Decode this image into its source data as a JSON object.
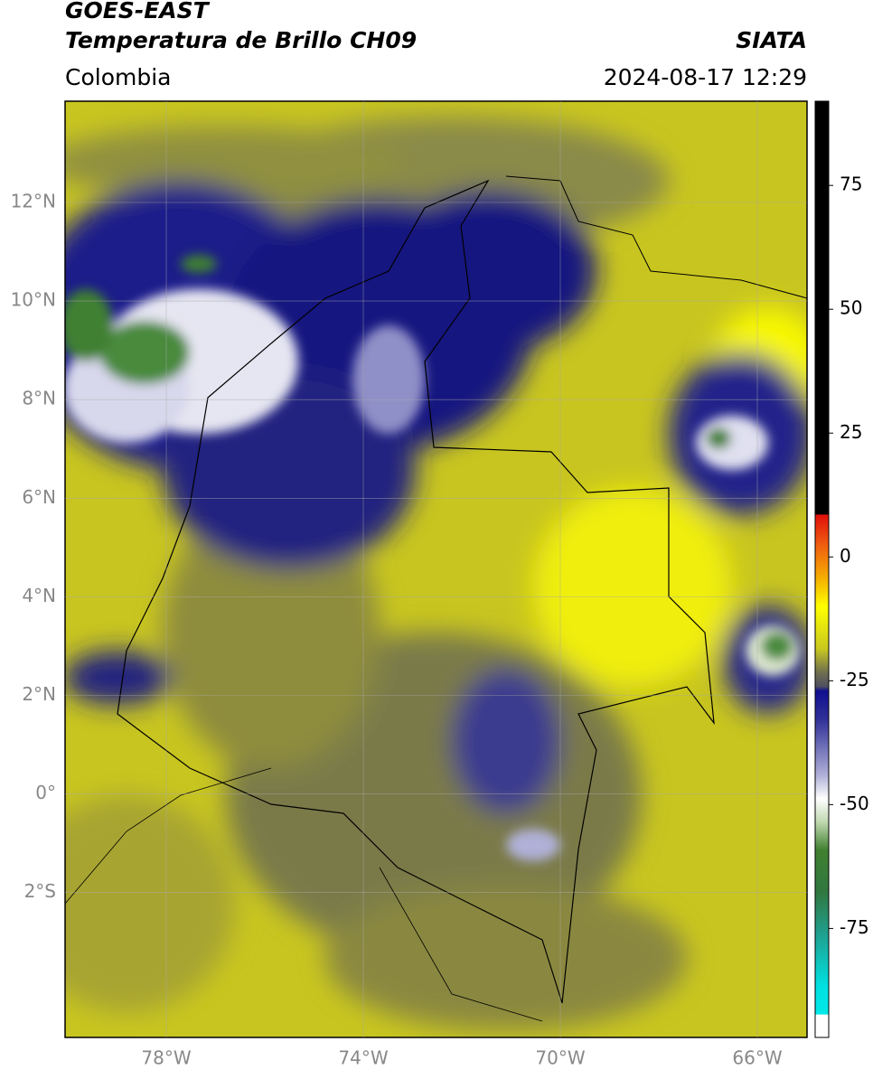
{
  "header": {
    "title": "GOES-EAST",
    "subtitle": "Temperatura de Brillo CH09",
    "region": "Colombia",
    "source": "SIATA",
    "datetime": "2024-08-17 12:29"
  },
  "map": {
    "lat_ticks": [
      "12°N",
      "10°N",
      "8°N",
      "6°N",
      "4°N",
      "2°N",
      "0°",
      "2°S"
    ],
    "lon_ticks": [
      "78°W",
      "74°W",
      "70°W",
      "66°W"
    ]
  },
  "colorbar": {
    "lim": [
      -97,
      92
    ],
    "ticks": [
      75,
      50,
      25,
      0,
      -25,
      -50,
      -75
    ]
  }
}
